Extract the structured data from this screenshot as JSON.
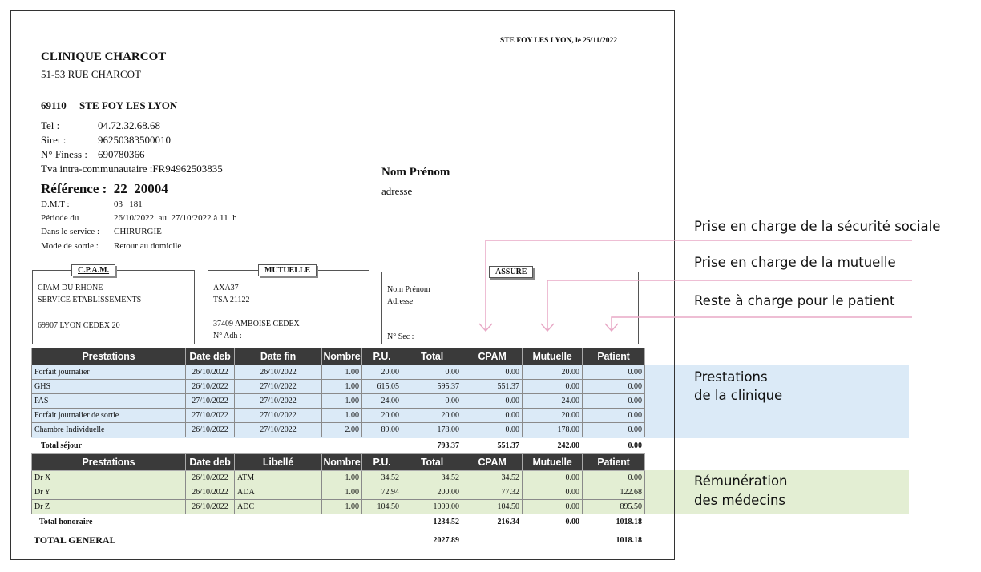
{
  "header": {
    "city_date": "STE FOY LES LYON, le 25/11/2022",
    "clinic_name": "CLINIQUE CHARCOT",
    "street": "51-53 RUE CHARCOT",
    "postcode_city": "69110     STE FOY LES LYON",
    "tel_label": "Tel :",
    "tel_value": "04.72.32.68.68",
    "siret_label": "Siret :",
    "siret_value": "96250383500010",
    "finess_label": "N° Finess :",
    "finess_value": "690780366",
    "tva": "Tva intra-communautaire :FR94962503835",
    "reference": "Référence :  22  20004",
    "dmt_label": "D.M.T :",
    "dmt_value": "03   181",
    "period_label": "Période du",
    "period_value": "26/10/2022  au  27/10/2022 à 11  h",
    "service_label": "Dans le service :",
    "service_value": "CHIRURGIE",
    "exit_label": "Mode de sortie :",
    "exit_value": "Retour au domicile",
    "recipient_name": "Nom Prénom",
    "recipient_address": "adresse"
  },
  "boxes": {
    "cpam": {
      "title": "C.P.A.M.",
      "line1": "CPAM DU RHONE",
      "line2": "SERVICE ETABLISSEMENTS",
      "line3": "69907  LYON CEDEX 20"
    },
    "mutuelle": {
      "title": "MUTUELLE",
      "line1": "AXA37",
      "line2": "TSA 21122",
      "line3": "37409  AMBOISE CEDEX",
      "line4": "N° Adh :"
    },
    "assure": {
      "title": "ASSURE",
      "line1": "Nom Prénom",
      "line2": "Adresse",
      "line3": "N° Sec :"
    }
  },
  "table1": {
    "headers": [
      "Prestations",
      "Date deb",
      "Date fin",
      "Nombre",
      "P.U.",
      "Total",
      "CPAM",
      "Mutuelle",
      "Patient"
    ],
    "rows": [
      [
        "Forfait journalier",
        "26/10/2022",
        "26/10/2022",
        "1.00",
        "20.00",
        "0.00",
        "0.00",
        "20.00",
        "0.00"
      ],
      [
        "GHS",
        "26/10/2022",
        "27/10/2022",
        "1.00",
        "615.05",
        "595.37",
        "551.37",
        "0.00",
        "0.00"
      ],
      [
        "PAS",
        "27/10/2022",
        "27/10/2022",
        "1.00",
        "24.00",
        "0.00",
        "0.00",
        "24.00",
        "0.00"
      ],
      [
        "Forfait journalier de sortie",
        "27/10/2022",
        "27/10/2022",
        "1.00",
        "20.00",
        "20.00",
        "0.00",
        "20.00",
        "0.00"
      ],
      [
        "Chambre Individuelle",
        "26/10/2022",
        "27/10/2022",
        "2.00",
        "89.00",
        "178.00",
        "0.00",
        "178.00",
        "0.00"
      ]
    ],
    "total_label": "Total séjour",
    "total_values": [
      "793.37",
      "551.37",
      "242.00",
      "0.00"
    ]
  },
  "table2": {
    "headers": [
      "Prestations",
      "Date deb",
      "Libellé",
      "Nombre",
      "P.U.",
      "Total",
      "CPAM",
      "Mutuelle",
      "Patient"
    ],
    "rows": [
      [
        "Dr X",
        "26/10/2022",
        "ATM",
        "1.00",
        "34.52",
        "34.52",
        "34.52",
        "0.00",
        "0.00"
      ],
      [
        "Dr Y",
        "26/10/2022",
        "ADA",
        "1.00",
        "72.94",
        "200.00",
        "77.32",
        "0.00",
        "122.68"
      ],
      [
        "Dr Z",
        "26/10/2022",
        "ADC",
        "1.00",
        "104.50",
        "1000.00",
        "104.50",
        "0.00",
        "895.50"
      ]
    ],
    "total_label": "Total honoraire",
    "total_values": [
      "1234.52",
      "216.34",
      "0.00",
      "1018.18"
    ]
  },
  "grand_total": {
    "label": "TOTAL GENERAL",
    "total": "2027.89",
    "patient": "1018.18"
  },
  "annotations": {
    "securite_sociale": "Prise en charge de la sécurité sociale",
    "mutuelle": "Prise en charge de la mutuelle",
    "patient": "Reste à charge pour le patient",
    "prestations_line1": "Prestations",
    "prestations_line2": "de la clinique",
    "remuneration_line1": "Rémunération",
    "remuneration_line2": "des médecins"
  },
  "colors": {
    "arrow_pink": "#e8a9c6",
    "band_blue": "#dbeaf7",
    "band_green": "#e3eed3",
    "header_dark": "#3a3a3a"
  }
}
